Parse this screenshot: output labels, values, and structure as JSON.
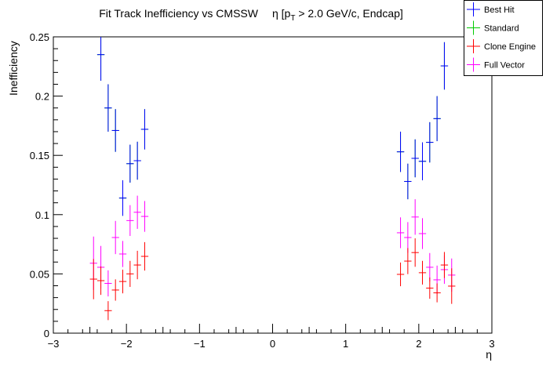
{
  "chart_data": {
    "type": "scatter",
    "title": "Fit Track Inefficiency vs CMSSW",
    "title_suffix_eta": "η [p",
    "title_suffix_sub": "T",
    "title_suffix_rest": " > 2.0 GeV/c, Endcap]",
    "xlabel": "η",
    "ylabel": "Inefficiency",
    "xlim": [
      -3,
      3
    ],
    "ylim": [
      0,
      0.25
    ],
    "x_ticks": [
      -3,
      -2,
      -1,
      0,
      1,
      2,
      3
    ],
    "x_tick_labels": [
      "−3",
      "−2",
      "−1",
      "0",
      "1",
      "2",
      "3"
    ],
    "y_ticks": [
      0,
      0.05,
      0.1,
      0.15,
      0.2,
      0.25
    ],
    "y_tick_labels": [
      "0",
      "0.05",
      "0.1",
      "0.15",
      "0.2",
      "0.25"
    ],
    "grid": false,
    "legend_position": "top-right",
    "x_bin_halfwidth": 0.05,
    "series": [
      {
        "name": "Standard",
        "color": "#00cc00",
        "x": [
          -2.35,
          -2.25,
          -2.15,
          -2.05,
          -1.95,
          -1.85,
          -1.75,
          1.75,
          1.85,
          1.95,
          2.05,
          2.15,
          2.25,
          2.35
        ],
        "y": [
          0.235,
          0.19,
          0.171,
          0.114,
          0.143,
          0.1455,
          0.172,
          0.153,
          0.128,
          0.1475,
          0.145,
          0.161,
          0.181,
          0.2255
        ],
        "err": [
          0.022,
          0.02,
          0.018,
          0.015,
          0.016,
          0.016,
          0.017,
          0.017,
          0.015,
          0.016,
          0.016,
          0.017,
          0.019,
          0.02
        ]
      },
      {
        "name": "Best Hit",
        "color": "#0000ff",
        "x": [
          -2.35,
          -2.25,
          -2.15,
          -2.05,
          -1.95,
          -1.85,
          -1.75,
          1.75,
          1.85,
          1.95,
          2.05,
          2.15,
          2.25,
          2.35
        ],
        "y": [
          0.235,
          0.19,
          0.171,
          0.114,
          0.143,
          0.1455,
          0.172,
          0.153,
          0.128,
          0.1475,
          0.145,
          0.161,
          0.181,
          0.2255
        ],
        "err": [
          0.022,
          0.02,
          0.018,
          0.015,
          0.016,
          0.016,
          0.017,
          0.017,
          0.015,
          0.016,
          0.016,
          0.017,
          0.019,
          0.02
        ]
      },
      {
        "name": "Full Vector",
        "color": "#ff00ff",
        "x": [
          -2.45,
          -2.35,
          -2.25,
          -2.15,
          -2.05,
          -1.95,
          -1.85,
          -1.75,
          1.75,
          1.85,
          1.95,
          2.05,
          2.15,
          2.25,
          2.35,
          2.45
        ],
        "y": [
          0.059,
          0.0556,
          0.042,
          0.0807,
          0.0668,
          0.095,
          0.102,
          0.0985,
          0.0847,
          0.0807,
          0.098,
          0.084,
          0.0556,
          0.045,
          0.0536,
          0.049
        ],
        "err": [
          0.0225,
          0.018,
          0.011,
          0.014,
          0.011,
          0.013,
          0.014,
          0.013,
          0.013,
          0.013,
          0.015,
          0.013,
          0.012,
          0.012,
          0.012,
          0.014
        ]
      },
      {
        "name": "Clone Engine",
        "color": "#ff0000",
        "x": [
          -2.45,
          -2.35,
          -2.25,
          -2.15,
          -2.05,
          -1.95,
          -1.85,
          -1.75,
          1.75,
          1.85,
          1.95,
          2.05,
          2.15,
          2.25,
          2.35,
          2.45
        ],
        "y": [
          0.0456,
          0.0443,
          0.019,
          0.0364,
          0.0436,
          0.05,
          0.0575,
          0.0648,
          0.0496,
          0.0608,
          0.068,
          0.051,
          0.038,
          0.034,
          0.0575,
          0.0397
        ],
        "err": [
          0.017,
          0.012,
          0.008,
          0.009,
          0.01,
          0.011,
          0.012,
          0.012,
          0.01,
          0.011,
          0.012,
          0.01,
          0.009,
          0.008,
          0.011,
          0.015
        ]
      }
    ],
    "legend": [
      {
        "name": "Best Hit",
        "color": "#0000ff"
      },
      {
        "name": "Standard",
        "color": "#00cc00"
      },
      {
        "name": "Clone Engine",
        "color": "#ff0000"
      },
      {
        "name": "Full Vector",
        "color": "#ff00ff"
      }
    ]
  }
}
